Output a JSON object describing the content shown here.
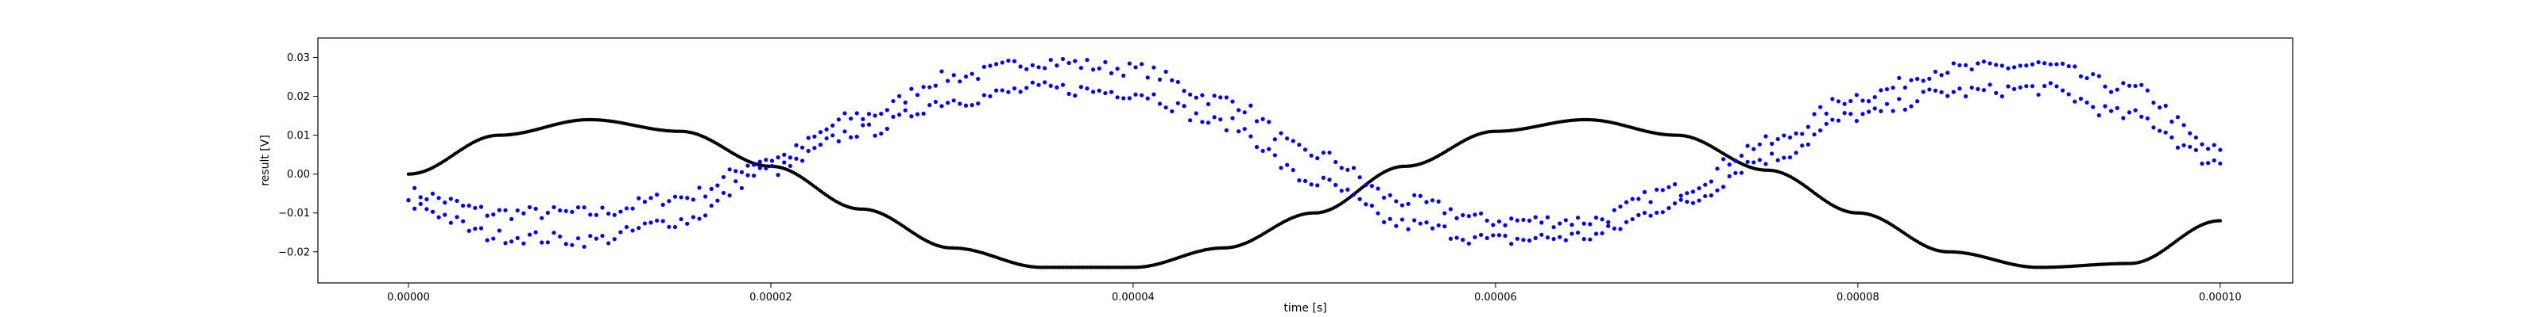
{
  "chart_data": {
    "type": "scatter",
    "title": "",
    "xlabel": "time [s]",
    "ylabel": "result [V]",
    "xlim": [
      -5e-06,
      0.000104
    ],
    "ylim": [
      -0.028,
      0.035
    ],
    "grid": false,
    "x_ticks": [
      0,
      2e-05,
      4e-05,
      6e-05,
      8e-05,
      0.0001
    ],
    "x_tick_labels": [
      "0.00000",
      "0.00002",
      "0.00004",
      "0.00006",
      "0.00008",
      "0.00010"
    ],
    "y_ticks": [
      -0.02,
      -0.01,
      0.0,
      0.01,
      0.02,
      0.03
    ],
    "y_tick_labels": [
      "−0.02",
      "−0.01",
      "0.00",
      "0.01",
      "0.02",
      "0.03"
    ],
    "series": [
      {
        "color": "#000000",
        "marker": "dot",
        "x": [
          0,
          5e-06,
          1e-05,
          1.5e-05,
          2e-05,
          2.5e-05,
          3e-05,
          3.5e-05,
          4e-05,
          4.5e-05,
          5e-05,
          5.5e-05,
          6e-05,
          6.5e-05,
          7e-05,
          7.5e-05,
          8e-05,
          8.5e-05,
          9e-05,
          9.5e-05,
          0.0001
        ],
        "y": [
          0.0,
          0.01,
          0.014,
          0.011,
          0.002,
          -0.009,
          -0.019,
          -0.024,
          -0.024,
          -0.019,
          -0.01,
          0.002,
          0.011,
          0.014,
          0.01,
          0.001,
          -0.01,
          -0.02,
          -0.024,
          -0.023,
          -0.012
        ]
      },
      {
        "color": "#0000ff",
        "marker": "dot",
        "x": [
          0,
          5e-06,
          1e-05,
          1.5e-05,
          2e-05,
          2.5e-05,
          3e-05,
          3.5e-05,
          4e-05,
          4.5e-05,
          5e-05,
          5.5e-05,
          6e-05,
          6.5e-05,
          7e-05,
          7.5e-05,
          8e-05,
          8.5e-05,
          9e-05,
          9.5e-05,
          0.0001
        ],
        "y": [
          -0.005,
          -0.01,
          -0.01,
          -0.006,
          0.004,
          0.015,
          0.025,
          0.029,
          0.027,
          0.019,
          0.005,
          -0.007,
          -0.012,
          -0.012,
          -0.004,
          0.008,
          0.02,
          0.027,
          0.028,
          0.022,
          0.006
        ]
      },
      {
        "color": "#0000ff",
        "marker": "dot",
        "x": [
          0,
          5e-06,
          1e-05,
          1.5e-05,
          2e-05,
          2.5e-05,
          3e-05,
          3.5e-05,
          4e-05,
          4.5e-05,
          5e-05,
          5.5e-05,
          6e-05,
          6.5e-05,
          7e-05,
          7.5e-05,
          8e-05,
          8.5e-05,
          9e-05,
          9.5e-05,
          0.0001
        ],
        "y": [
          -0.008,
          -0.016,
          -0.017,
          -0.012,
          0.001,
          0.011,
          0.019,
          0.022,
          0.021,
          0.013,
          -0.002,
          -0.013,
          -0.017,
          -0.016,
          -0.008,
          0.004,
          0.015,
          0.021,
          0.022,
          0.015,
          0.003
        ]
      }
    ]
  }
}
